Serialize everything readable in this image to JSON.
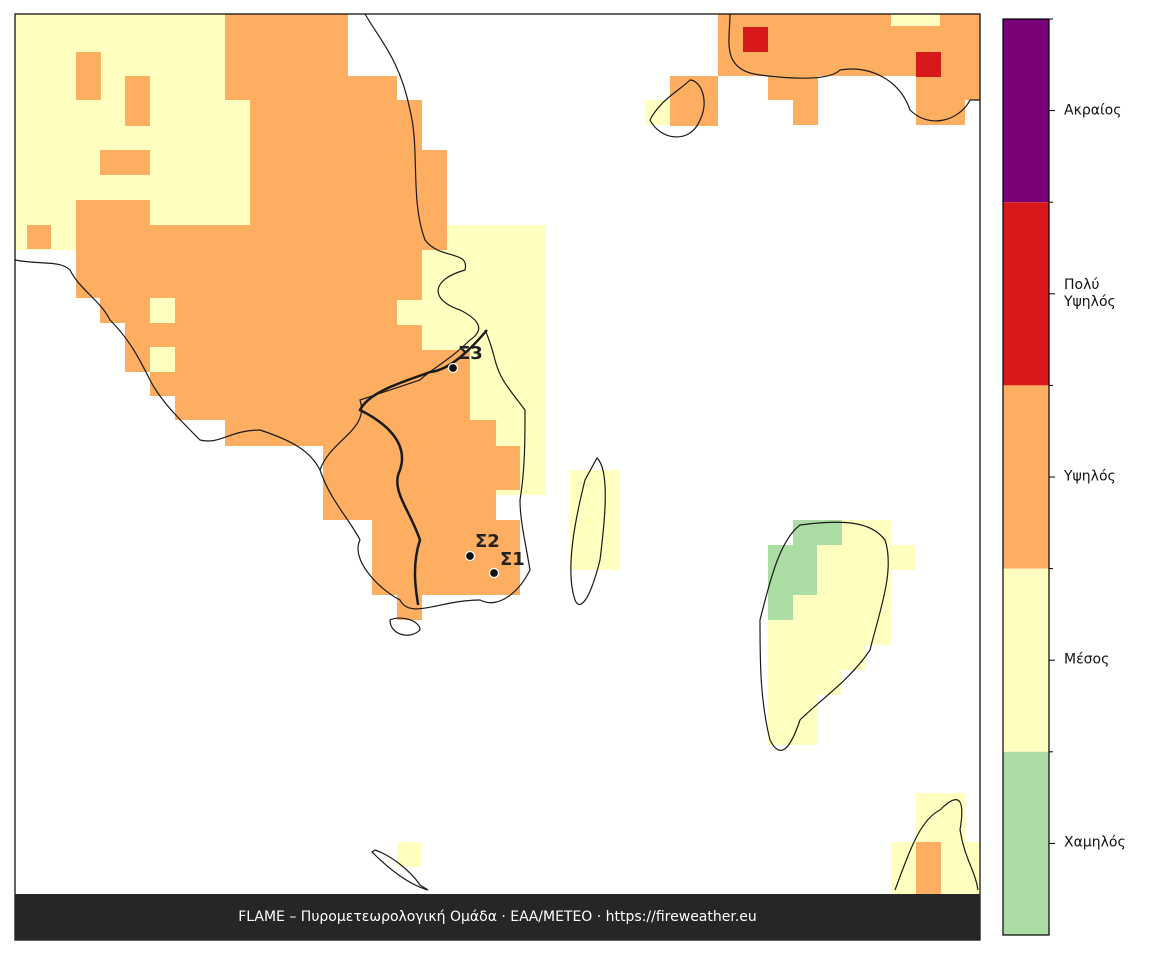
{
  "legend": {
    "classes": [
      {
        "label": "Ακραίος",
        "color": "#7a0177"
      },
      {
        "label": "Πολύ Υψηλός",
        "color": "#d7191c"
      },
      {
        "label": "Υψηλός",
        "color": "#fdae61"
      },
      {
        "label": "Μέσος",
        "color": "#ffffc0"
      },
      {
        "label": "Χαμηλός",
        "color": "#abdda4"
      }
    ]
  },
  "stations": [
    {
      "label": "Σ3"
    },
    {
      "label": "Σ2"
    },
    {
      "label": "Σ1"
    }
  ],
  "footer": "FLAME – Πυρομετεωρολογική Ομάδα · ΕΑΑ/METEO · https://fireweather.eu"
}
